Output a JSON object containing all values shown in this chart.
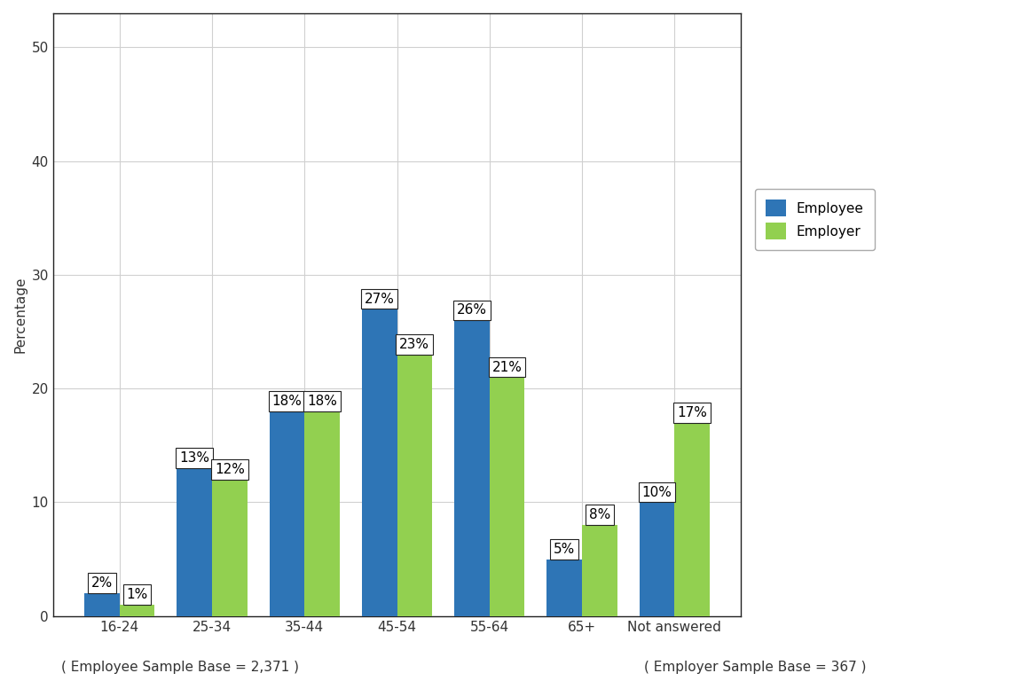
{
  "categories": [
    "16-24",
    "25-34",
    "35-44",
    "45-54",
    "55-64",
    "65+",
    "Not answered"
  ],
  "employee_values": [
    2,
    13,
    18,
    27,
    26,
    5,
    10
  ],
  "employer_values": [
    1,
    12,
    18,
    23,
    21,
    8,
    17
  ],
  "employee_color": "#2E75B6",
  "employer_color": "#92D050",
  "ylabel": "Percentage",
  "ylim": [
    0,
    53
  ],
  "yticks": [
    0,
    10,
    20,
    30,
    40,
    50
  ],
  "legend_employee": "Employee",
  "legend_employer": "Employer",
  "footer_left": "( Employee Sample Base = 2,371 )",
  "footer_right": "( Employer Sample Base = 367 )",
  "bar_width": 0.38,
  "background_color": "#ffffff",
  "plot_bg_color": "#ffffff",
  "grid_color": "#d0d0d0",
  "label_fontsize": 11,
  "tick_fontsize": 11,
  "legend_fontsize": 11,
  "footer_fontsize": 11,
  "label_box_color": "white",
  "label_box_edge_color": "#222222",
  "spine_color": "#222222"
}
